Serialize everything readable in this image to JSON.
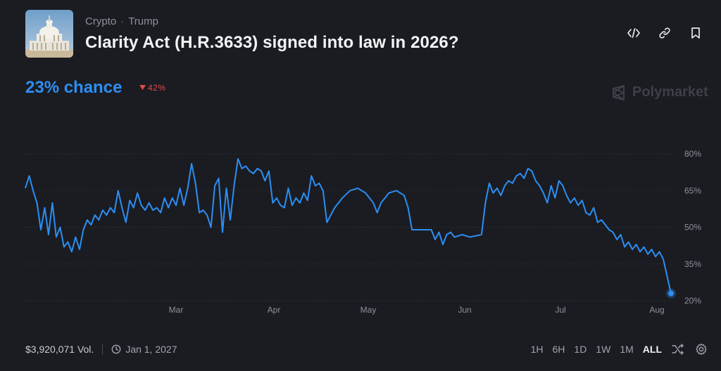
{
  "breadcrumbs": [
    "Crypto",
    "Trump"
  ],
  "title": "Clarity Act (H.R.3633) signed into law in 2026?",
  "chance_text": "23% chance",
  "change_text": "42%",
  "brand": "Polymarket",
  "volume": "$3,920,071 Vol.",
  "end_date": "Jan 1, 2027",
  "ranges": [
    "1H",
    "6H",
    "1D",
    "1W",
    "1M",
    "ALL"
  ],
  "active_range": "ALL",
  "colors": {
    "line": "#2d8ef2",
    "down": "#e24a4a",
    "background": "#1a1c22"
  },
  "icons": [
    "capitol-thumbnail",
    "embed-code-icon",
    "link-icon",
    "bookmark-icon",
    "triangle-down-icon",
    "polymarket-logo-icon",
    "clock-icon",
    "shuffle-icon",
    "gear-icon"
  ],
  "chart_data": {
    "type": "line",
    "x_ticks": [
      "Mar",
      "Apr",
      "May",
      "Jun",
      "Jul",
      "Aug"
    ],
    "y_ticks": [
      "80%",
      "65%",
      "50%",
      "35%",
      "20%"
    ],
    "ylim": [
      20,
      80
    ],
    "x_domain": [
      0,
      167
    ],
    "grid": true,
    "series": [
      {
        "values": [
          [
            0,
            66
          ],
          [
            1,
            71
          ],
          [
            2,
            65
          ],
          [
            3,
            60
          ],
          [
            4,
            49
          ],
          [
            5,
            58
          ],
          [
            6,
            47
          ],
          [
            7,
            60
          ],
          [
            8,
            46
          ],
          [
            9,
            50
          ],
          [
            10,
            42
          ],
          [
            11,
            44
          ],
          [
            12,
            40
          ],
          [
            13,
            46
          ],
          [
            14,
            41
          ],
          [
            15,
            49
          ],
          [
            16,
            53
          ],
          [
            17,
            51
          ],
          [
            18,
            55
          ],
          [
            19,
            53
          ],
          [
            20,
            57
          ],
          [
            21,
            55
          ],
          [
            22,
            58
          ],
          [
            23,
            56
          ],
          [
            24,
            65
          ],
          [
            25,
            58
          ],
          [
            26,
            52
          ],
          [
            27,
            61
          ],
          [
            28,
            58
          ],
          [
            29,
            64
          ],
          [
            30,
            59
          ],
          [
            31,
            57
          ],
          [
            32,
            60
          ],
          [
            33,
            57
          ],
          [
            34,
            58
          ],
          [
            35,
            56
          ],
          [
            36,
            62
          ],
          [
            37,
            58
          ],
          [
            38,
            62
          ],
          [
            39,
            59
          ],
          [
            40,
            66
          ],
          [
            41,
            59
          ],
          [
            42,
            66
          ],
          [
            43,
            76
          ],
          [
            44,
            68
          ],
          [
            45,
            56
          ],
          [
            46,
            57
          ],
          [
            47,
            55
          ],
          [
            48,
            50
          ],
          [
            49,
            67
          ],
          [
            50,
            70
          ],
          [
            51,
            48
          ],
          [
            52,
            66
          ],
          [
            53,
            53
          ],
          [
            54,
            67
          ],
          [
            55,
            78
          ],
          [
            56,
            74
          ],
          [
            57,
            75
          ],
          [
            58,
            73
          ],
          [
            59,
            72
          ],
          [
            60,
            74
          ],
          [
            61,
            73
          ],
          [
            62,
            69
          ],
          [
            63,
            73
          ],
          [
            64,
            60
          ],
          [
            65,
            62
          ],
          [
            66,
            59
          ],
          [
            67,
            58
          ],
          [
            68,
            66
          ],
          [
            69,
            59
          ],
          [
            70,
            62
          ],
          [
            71,
            60
          ],
          [
            72,
            64
          ],
          [
            73,
            61
          ],
          [
            74,
            71
          ],
          [
            75,
            67
          ],
          [
            76,
            68
          ],
          [
            77,
            65
          ],
          [
            78,
            52
          ],
          [
            80,
            58
          ],
          [
            82,
            62
          ],
          [
            84,
            65
          ],
          [
            86,
            66
          ],
          [
            88,
            64
          ],
          [
            90,
            60
          ],
          [
            91,
            56
          ],
          [
            92,
            60
          ],
          [
            94,
            64
          ],
          [
            96,
            65
          ],
          [
            98,
            63
          ],
          [
            99,
            58
          ],
          [
            100,
            49
          ],
          [
            105,
            49
          ],
          [
            106,
            45
          ],
          [
            107,
            48
          ],
          [
            108,
            43
          ],
          [
            109,
            47
          ],
          [
            110,
            48
          ],
          [
            111,
            46
          ],
          [
            113,
            47
          ],
          [
            115,
            46
          ],
          [
            118,
            47
          ],
          [
            119,
            60
          ],
          [
            120,
            68
          ],
          [
            121,
            64
          ],
          [
            122,
            66
          ],
          [
            123,
            63
          ],
          [
            124,
            67
          ],
          [
            125,
            69
          ],
          [
            126,
            68
          ],
          [
            127,
            71
          ],
          [
            128,
            72
          ],
          [
            129,
            70
          ],
          [
            130,
            74
          ],
          [
            131,
            73
          ],
          [
            132,
            69
          ],
          [
            133,
            67
          ],
          [
            134,
            64
          ],
          [
            135,
            60
          ],
          [
            136,
            67
          ],
          [
            137,
            62
          ],
          [
            138,
            69
          ],
          [
            139,
            67
          ],
          [
            140,
            63
          ],
          [
            141,
            60
          ],
          [
            142,
            62
          ],
          [
            143,
            59
          ],
          [
            144,
            61
          ],
          [
            145,
            56
          ],
          [
            146,
            55
          ],
          [
            147,
            58
          ],
          [
            148,
            52
          ],
          [
            149,
            53
          ],
          [
            150,
            51
          ],
          [
            151,
            49
          ],
          [
            152,
            48
          ],
          [
            153,
            45
          ],
          [
            154,
            47
          ],
          [
            155,
            42
          ],
          [
            156,
            44
          ],
          [
            157,
            41
          ],
          [
            158,
            43
          ],
          [
            159,
            40
          ],
          [
            160,
            42
          ],
          [
            161,
            39
          ],
          [
            162,
            41
          ],
          [
            163,
            38
          ],
          [
            164,
            40
          ],
          [
            165,
            37
          ],
          [
            166,
            30
          ],
          [
            167,
            23
          ]
        ]
      }
    ]
  }
}
